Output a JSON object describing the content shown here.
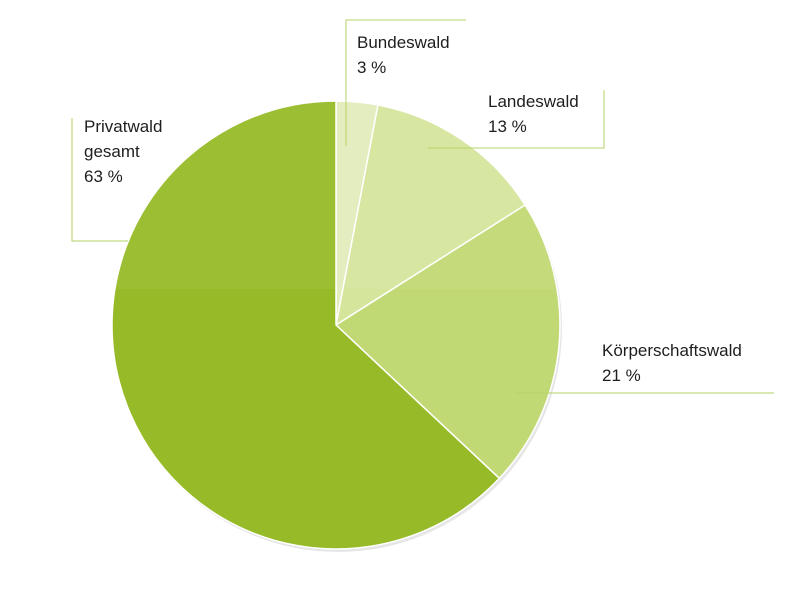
{
  "chart_data": {
    "type": "pie",
    "title": "",
    "start_angle_deg": 0,
    "direction": "clockwise",
    "slices": [
      {
        "key": "bundeswald",
        "name": "Bundeswald",
        "value": 3,
        "value_label": "3 %",
        "color": "#e3edbd"
      },
      {
        "key": "landeswald",
        "name": "Landeswald",
        "value": 13,
        "value_label": "13 %",
        "color": "#d5e59b"
      },
      {
        "key": "koerperschaftswald",
        "name": "Körperschaftswald",
        "value": 21,
        "value_label": "21 %",
        "color": "#c1d974"
      },
      {
        "key": "privatwald",
        "name": "Privatwald gesamt",
        "name_lines": [
          "Privatwald",
          "gesamt"
        ],
        "value": 63,
        "value_label": "63 %",
        "color": "#97bb28"
      }
    ],
    "leader_line_color": "#b5d16a",
    "legend": "none",
    "grid": false
  }
}
